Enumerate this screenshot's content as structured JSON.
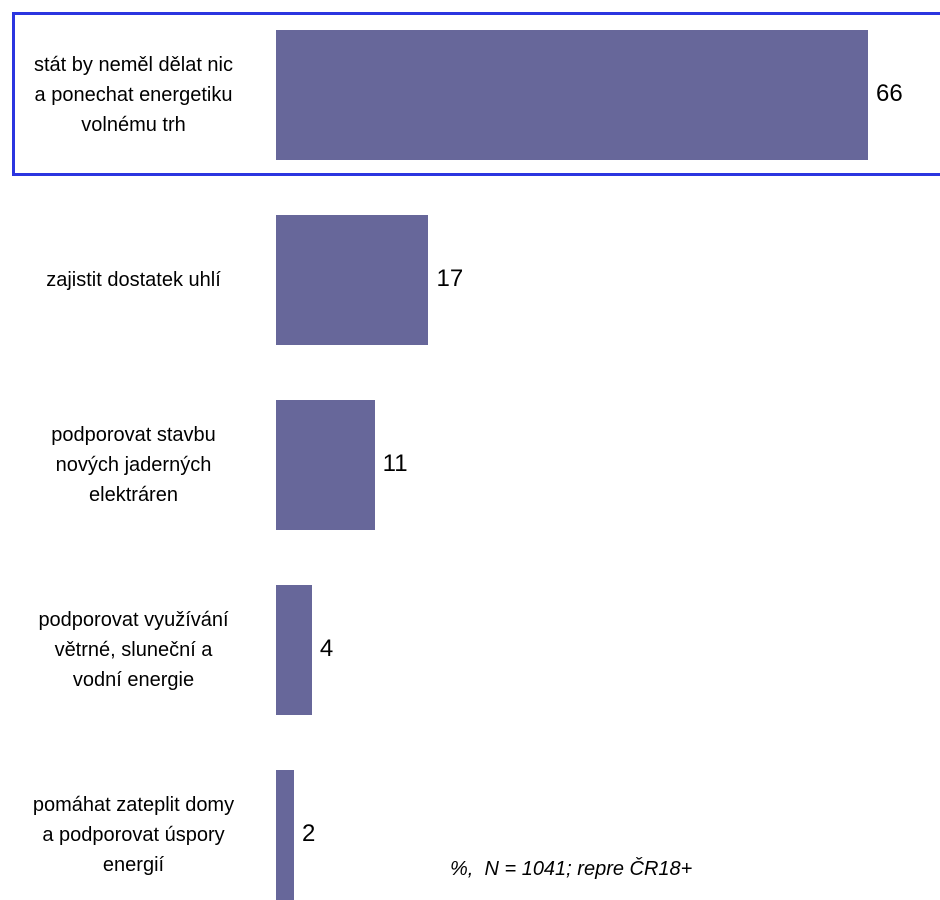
{
  "chart_data": {
    "type": "bar",
    "orientation": "horizontal",
    "categories": [
      "stát by neměl dělat nic\na ponechat energetiku\nvolnému trh",
      "zajistit dostatek uhlí",
      "podporovat stavbu\nnových jaderných\nelektráren",
      "podporovat využívání\nvětrné, sluneční a\nvodní energie",
      "pomáhat zateplit domy\na podporovat úspory\nenergií"
    ],
    "values": [
      66,
      17,
      11,
      4,
      2
    ],
    "bar_color": "#67679a",
    "highlight_color": "#2b35e0",
    "highlighted_index": 0,
    "xlim": [
      0,
      70
    ],
    "grid": false,
    "note": "%,  N = 1041; repre ČR18+"
  }
}
